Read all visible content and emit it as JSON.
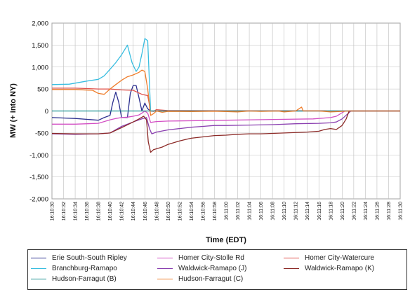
{
  "chart_data": {
    "type": "line",
    "title": "",
    "xlabel": "Time (EDT)",
    "ylabel": "MW (+ into NY)",
    "ylim": [
      -2000,
      2000
    ],
    "yticks": [
      2000,
      1500,
      1000,
      500,
      0,
      -500,
      -1000,
      -1500,
      -2000
    ],
    "ytick_labels": [
      "2,000",
      "1,500",
      "1,000",
      "500",
      "0",
      "-500",
      "-1,000",
      "-1,500",
      "-2,000"
    ],
    "x_categories": [
      "16:10:30",
      "16:10:32",
      "16:10:34",
      "16:10:36",
      "16:10:38",
      "16:10:40",
      "16:10:42",
      "16:10:44",
      "16:10:46",
      "16:10:48",
      "16:10:50",
      "16:10:52",
      "16:10:54",
      "16:10:56",
      "16:10:58",
      "16:11:00",
      "16:11:02",
      "16:11:04",
      "16:11:06",
      "16:11:08",
      "16:11:10",
      "16:11:12",
      "16:11:14",
      "16:11:16",
      "16:11:18",
      "16:11:20",
      "16:11:22",
      "16:11:24",
      "16:11:26",
      "16:11:28",
      "16:11:30"
    ],
    "grid": true,
    "legend_position": "bottom",
    "series": [
      {
        "name": "Erie South-South Ripley",
        "color": "#2b2f8f",
        "points": [
          [
            0,
            -150
          ],
          [
            4,
            -170
          ],
          [
            8,
            -210
          ],
          [
            9,
            -150
          ],
          [
            10,
            -100
          ],
          [
            10.5,
            200
          ],
          [
            11,
            430
          ],
          [
            11.5,
            200
          ],
          [
            12,
            -150
          ],
          [
            13,
            -150
          ],
          [
            13.5,
            400
          ],
          [
            14,
            580
          ],
          [
            14.5,
            580
          ],
          [
            15,
            300
          ],
          [
            15.5,
            0
          ],
          [
            16,
            180
          ],
          [
            16.5,
            50
          ],
          [
            17,
            0
          ],
          [
            20,
            0
          ],
          [
            40,
            0
          ],
          [
            60,
            0
          ]
        ]
      },
      {
        "name": "Homer City-Stolle Rd",
        "color": "#d34fc4",
        "points": [
          [
            0,
            -300
          ],
          [
            4,
            -300
          ],
          [
            8,
            -280
          ],
          [
            10,
            -200
          ],
          [
            11,
            -170
          ],
          [
            12,
            -150
          ],
          [
            13,
            -140
          ],
          [
            14,
            -120
          ],
          [
            15,
            -90
          ],
          [
            15.5,
            -50
          ],
          [
            16,
            0
          ],
          [
            16.5,
            -50
          ],
          [
            17,
            -260
          ],
          [
            18,
            -240
          ],
          [
            20,
            -230
          ],
          [
            30,
            -210
          ],
          [
            40,
            -190
          ],
          [
            45,
            -180
          ],
          [
            48,
            -150
          ],
          [
            49,
            -120
          ],
          [
            50,
            -40
          ],
          [
            50.5,
            0
          ],
          [
            60,
            0
          ]
        ]
      },
      {
        "name": "Homer City-Watercure",
        "color": "#e0504a",
        "points": [
          [
            0,
            520
          ],
          [
            4,
            520
          ],
          [
            8,
            500
          ],
          [
            10,
            500
          ],
          [
            12,
            480
          ],
          [
            14,
            470
          ],
          [
            15.5,
            380
          ],
          [
            16.5,
            350
          ],
          [
            17,
            0
          ],
          [
            17.5,
            -10
          ],
          [
            18,
            30
          ],
          [
            20,
            10
          ],
          [
            30,
            5
          ],
          [
            40,
            5
          ],
          [
            47,
            5
          ],
          [
            47.5,
            0
          ],
          [
            60,
            0
          ]
        ]
      },
      {
        "name": "Branchburg-Ramapo",
        "color": "#38bde0",
        "points": [
          [
            0,
            600
          ],
          [
            3,
            610
          ],
          [
            6,
            680
          ],
          [
            8,
            720
          ],
          [
            9,
            800
          ],
          [
            10,
            950
          ],
          [
            11,
            1100
          ],
          [
            12,
            1280
          ],
          [
            13,
            1500
          ],
          [
            13.8,
            1100
          ],
          [
            14.5,
            900
          ],
          [
            15,
            1000
          ],
          [
            15.5,
            1300
          ],
          [
            16,
            1650
          ],
          [
            16.5,
            1600
          ],
          [
            17,
            0
          ],
          [
            17.5,
            0
          ],
          [
            60,
            0
          ]
        ]
      },
      {
        "name": "Waldwick-Ramapo (J)",
        "color": "#8a3fb0",
        "points": [
          [
            0,
            -520
          ],
          [
            4,
            -530
          ],
          [
            8,
            -520
          ],
          [
            10,
            -500
          ],
          [
            12,
            -350
          ],
          [
            14,
            -250
          ],
          [
            15,
            -200
          ],
          [
            15.5,
            -180
          ],
          [
            16.3,
            -150
          ],
          [
            16.8,
            -400
          ],
          [
            17.2,
            -520
          ],
          [
            18,
            -480
          ],
          [
            20,
            -430
          ],
          [
            22,
            -400
          ],
          [
            24,
            -370
          ],
          [
            26,
            -350
          ],
          [
            28,
            -330
          ],
          [
            30,
            -330
          ],
          [
            34,
            -320
          ],
          [
            38,
            -310
          ],
          [
            42,
            -290
          ],
          [
            46,
            -280
          ],
          [
            48,
            -270
          ],
          [
            49,
            -250
          ],
          [
            50,
            -180
          ],
          [
            51,
            -60
          ],
          [
            51.5,
            0
          ],
          [
            60,
            0
          ]
        ]
      },
      {
        "name": "Waldwick-Ramapo (K)",
        "color": "#8c2a27",
        "points": [
          [
            0,
            -510
          ],
          [
            4,
            -520
          ],
          [
            8,
            -520
          ],
          [
            10,
            -500
          ],
          [
            12,
            -380
          ],
          [
            14,
            -250
          ],
          [
            15,
            -180
          ],
          [
            15.8,
            -120
          ],
          [
            16.3,
            -200
          ],
          [
            16.6,
            -700
          ],
          [
            17,
            -940
          ],
          [
            17.5,
            -880
          ],
          [
            18,
            -860
          ],
          [
            19,
            -820
          ],
          [
            20,
            -760
          ],
          [
            21,
            -720
          ],
          [
            22,
            -680
          ],
          [
            23,
            -650
          ],
          [
            24,
            -620
          ],
          [
            26,
            -590
          ],
          [
            28,
            -560
          ],
          [
            30,
            -550
          ],
          [
            32,
            -530
          ],
          [
            34,
            -520
          ],
          [
            36,
            -520
          ],
          [
            40,
            -500
          ],
          [
            44,
            -480
          ],
          [
            46,
            -460
          ],
          [
            47,
            -420
          ],
          [
            48,
            -400
          ],
          [
            49,
            -420
          ],
          [
            50,
            -330
          ],
          [
            50.7,
            -180
          ],
          [
            51.2,
            0
          ],
          [
            60,
            0
          ]
        ]
      },
      {
        "name": "Hudson-Farragut (B)",
        "color": "#1a8f8f",
        "points": [
          [
            0,
            0
          ],
          [
            16.5,
            0
          ],
          [
            17,
            0
          ],
          [
            60,
            0
          ]
        ]
      },
      {
        "name": "Hudson-Farragut (C)",
        "color": "#ef7d2b",
        "points": [
          [
            0,
            490
          ],
          [
            4,
            490
          ],
          [
            7,
            470
          ],
          [
            8,
            400
          ],
          [
            9,
            380
          ],
          [
            10,
            500
          ],
          [
            11,
            600
          ],
          [
            12,
            700
          ],
          [
            13,
            780
          ],
          [
            14,
            820
          ],
          [
            15,
            880
          ],
          [
            15.5,
            930
          ],
          [
            16,
            900
          ],
          [
            16.5,
            500
          ],
          [
            17,
            -100
          ],
          [
            17.5,
            -60
          ],
          [
            18,
            0
          ],
          [
            19,
            -30
          ],
          [
            20,
            -10
          ],
          [
            24,
            -15
          ],
          [
            28,
            -5
          ],
          [
            32,
            -20
          ],
          [
            34,
            0
          ],
          [
            36,
            -10
          ],
          [
            39,
            0
          ],
          [
            40,
            -20
          ],
          [
            42,
            0
          ],
          [
            43,
            90
          ],
          [
            43.3,
            0
          ],
          [
            46,
            0
          ],
          [
            48,
            -20
          ],
          [
            50,
            -10
          ],
          [
            51,
            0
          ],
          [
            60,
            0
          ]
        ]
      }
    ]
  },
  "legend": [
    {
      "label": "Erie South-South Ripley",
      "color": "#2b2f8f"
    },
    {
      "label": "Homer City-Stolle Rd",
      "color": "#d34fc4"
    },
    {
      "label": "Homer City-Watercure",
      "color": "#e0504a"
    },
    {
      "label": "Branchburg-Ramapo",
      "color": "#38bde0"
    },
    {
      "label": "Waldwick-Ramapo (J)",
      "color": "#8a3fb0"
    },
    {
      "label": "Waldwick-Ramapo (K)",
      "color": "#8c2a27"
    },
    {
      "label": "Hudson-Farragut (B)",
      "color": "#1a8f8f"
    },
    {
      "label": "Hudson-Farragut (C)",
      "color": "#ef7d2b"
    }
  ]
}
